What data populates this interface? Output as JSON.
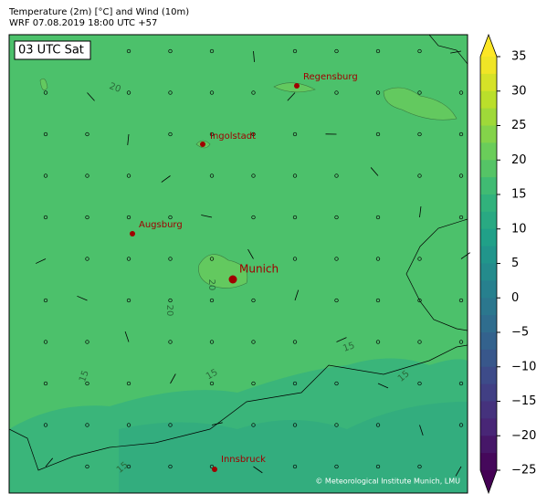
{
  "header": {
    "title": "Temperature (2m) [°C] and Wind (10m)",
    "subtitle": "WRF 07.08.2019 18:00 UTC +57"
  },
  "map": {
    "time_label": "03 UTC Sat",
    "cities": [
      "Regensburg",
      "Ingolstadt",
      "Augsburg",
      "Munich",
      "Innsbruck"
    ],
    "contour_labels": [
      "20",
      "20",
      "20",
      "15",
      "15",
      "15",
      "15",
      "15"
    ],
    "credit": "© Meteorological Institute Munich, LMU"
  },
  "colorbar": {
    "lim": [
      -25,
      35
    ],
    "ticks": [
      {
        "value": -25,
        "label": "−25"
      },
      {
        "value": -20,
        "label": "−20"
      },
      {
        "value": -15,
        "label": "−15"
      },
      {
        "value": -10,
        "label": "−10"
      },
      {
        "value": -5,
        "label": "−5"
      },
      0,
      5,
      10,
      15,
      20,
      25,
      30,
      35
    ]
  }
}
